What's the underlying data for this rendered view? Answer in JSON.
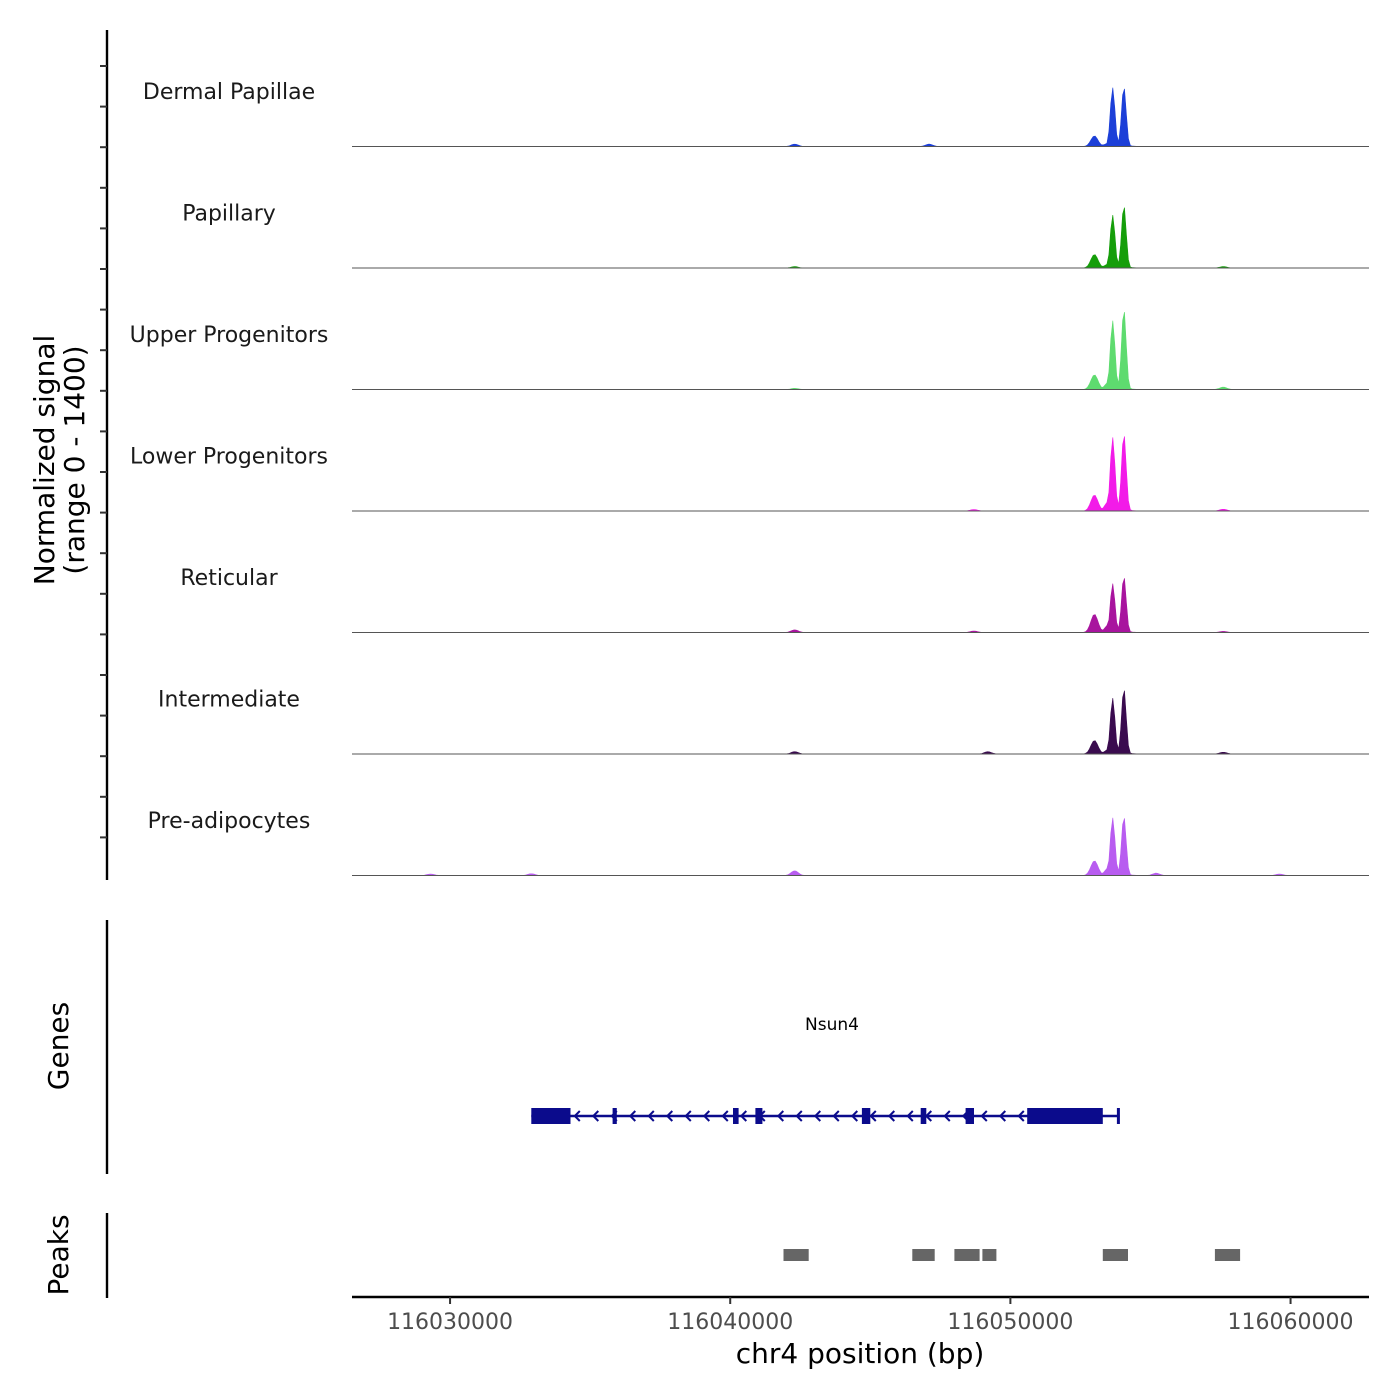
{
  "chart_data": {
    "type": "area",
    "title": "",
    "xlabel": "chr4 position (bp)",
    "ylabel_line1": "Normalized signal",
    "ylabel_line2": "(range 0 - 1400)",
    "xlim": [
      116026500,
      116062800
    ],
    "ylim": [
      0,
      1400
    ],
    "x_ticks": [
      116030000,
      116040000,
      116050000,
      116060000
    ],
    "x_tick_labels": [
      "116030000",
      "116040000",
      "116050000",
      "116060000"
    ],
    "tracks": [
      {
        "name": "Dermal Papillae",
        "color": "#1C3FD8",
        "peaks": [
          [
            116053000,
            180
          ],
          [
            116053500,
            60
          ],
          [
            116053650,
            1000
          ],
          [
            116054050,
            1020
          ],
          [
            116042300,
            40
          ],
          [
            116047100,
            40
          ]
        ]
      },
      {
        "name": "Papillary",
        "color": "#159E0A",
        "peaks": [
          [
            116053000,
            230
          ],
          [
            116053500,
            70
          ],
          [
            116053650,
            900
          ],
          [
            116054050,
            1070
          ],
          [
            116042300,
            25
          ],
          [
            116057600,
            25
          ]
        ]
      },
      {
        "name": "Upper Progenitors",
        "color": "#5EDB6F",
        "peaks": [
          [
            116053000,
            250
          ],
          [
            116053500,
            120
          ],
          [
            116053650,
            1170
          ],
          [
            116054050,
            1370
          ],
          [
            116042300,
            20
          ],
          [
            116057600,
            40
          ]
        ]
      },
      {
        "name": "Lower Progenitors",
        "color": "#F21BE8",
        "peaks": [
          [
            116053000,
            270
          ],
          [
            116053500,
            160
          ],
          [
            116053650,
            1250
          ],
          [
            116054050,
            1320
          ],
          [
            116048700,
            25
          ],
          [
            116057600,
            30
          ]
        ]
      },
      {
        "name": "Reticular",
        "color": "#A8149E",
        "peaks": [
          [
            116053000,
            310
          ],
          [
            116053500,
            130
          ],
          [
            116053650,
            830
          ],
          [
            116054050,
            960
          ],
          [
            116042300,
            45
          ],
          [
            116048700,
            25
          ],
          [
            116057600,
            20
          ]
        ]
      },
      {
        "name": "Intermediate",
        "color": "#3A0B4F",
        "peaks": [
          [
            116053000,
            230
          ],
          [
            116053500,
            80
          ],
          [
            116053650,
            950
          ],
          [
            116054050,
            1120
          ],
          [
            116042300,
            40
          ],
          [
            116049200,
            40
          ],
          [
            116057600,
            30
          ]
        ]
      },
      {
        "name": "Pre-adipocytes",
        "color": "#B85CF0",
        "peaks": [
          [
            116053000,
            250
          ],
          [
            116053500,
            130
          ],
          [
            116053650,
            980
          ],
          [
            116054050,
            1010
          ],
          [
            116042300,
            80
          ],
          [
            116032900,
            30
          ],
          [
            116029300,
            25
          ],
          [
            116059600,
            25
          ],
          [
            116055200,
            40
          ]
        ]
      }
    ],
    "genes_title": "Genes",
    "genes": [
      {
        "name": "Nsun4",
        "color": "#0B0B8C",
        "strand": "-",
        "start": 116032900,
        "end": 116053900,
        "exons": [
          [
            116032900,
            116034300
          ],
          [
            116035800,
            116035950
          ],
          [
            116040100,
            116040300
          ],
          [
            116040900,
            116041150
          ],
          [
            116044700,
            116045000
          ],
          [
            116046800,
            116047000
          ],
          [
            116048400,
            116048700
          ],
          [
            116050600,
            116053300
          ],
          [
            116053800,
            116053900
          ]
        ]
      }
    ],
    "peaks_title": "Peaks",
    "peak_regions": [
      [
        116041900,
        116042800
      ],
      [
        116046500,
        116047300
      ],
      [
        116048000,
        116048900
      ],
      [
        116049000,
        116049500
      ],
      [
        116053300,
        116054200
      ],
      [
        116057300,
        116058200
      ]
    ],
    "peak_color": "#666666"
  }
}
